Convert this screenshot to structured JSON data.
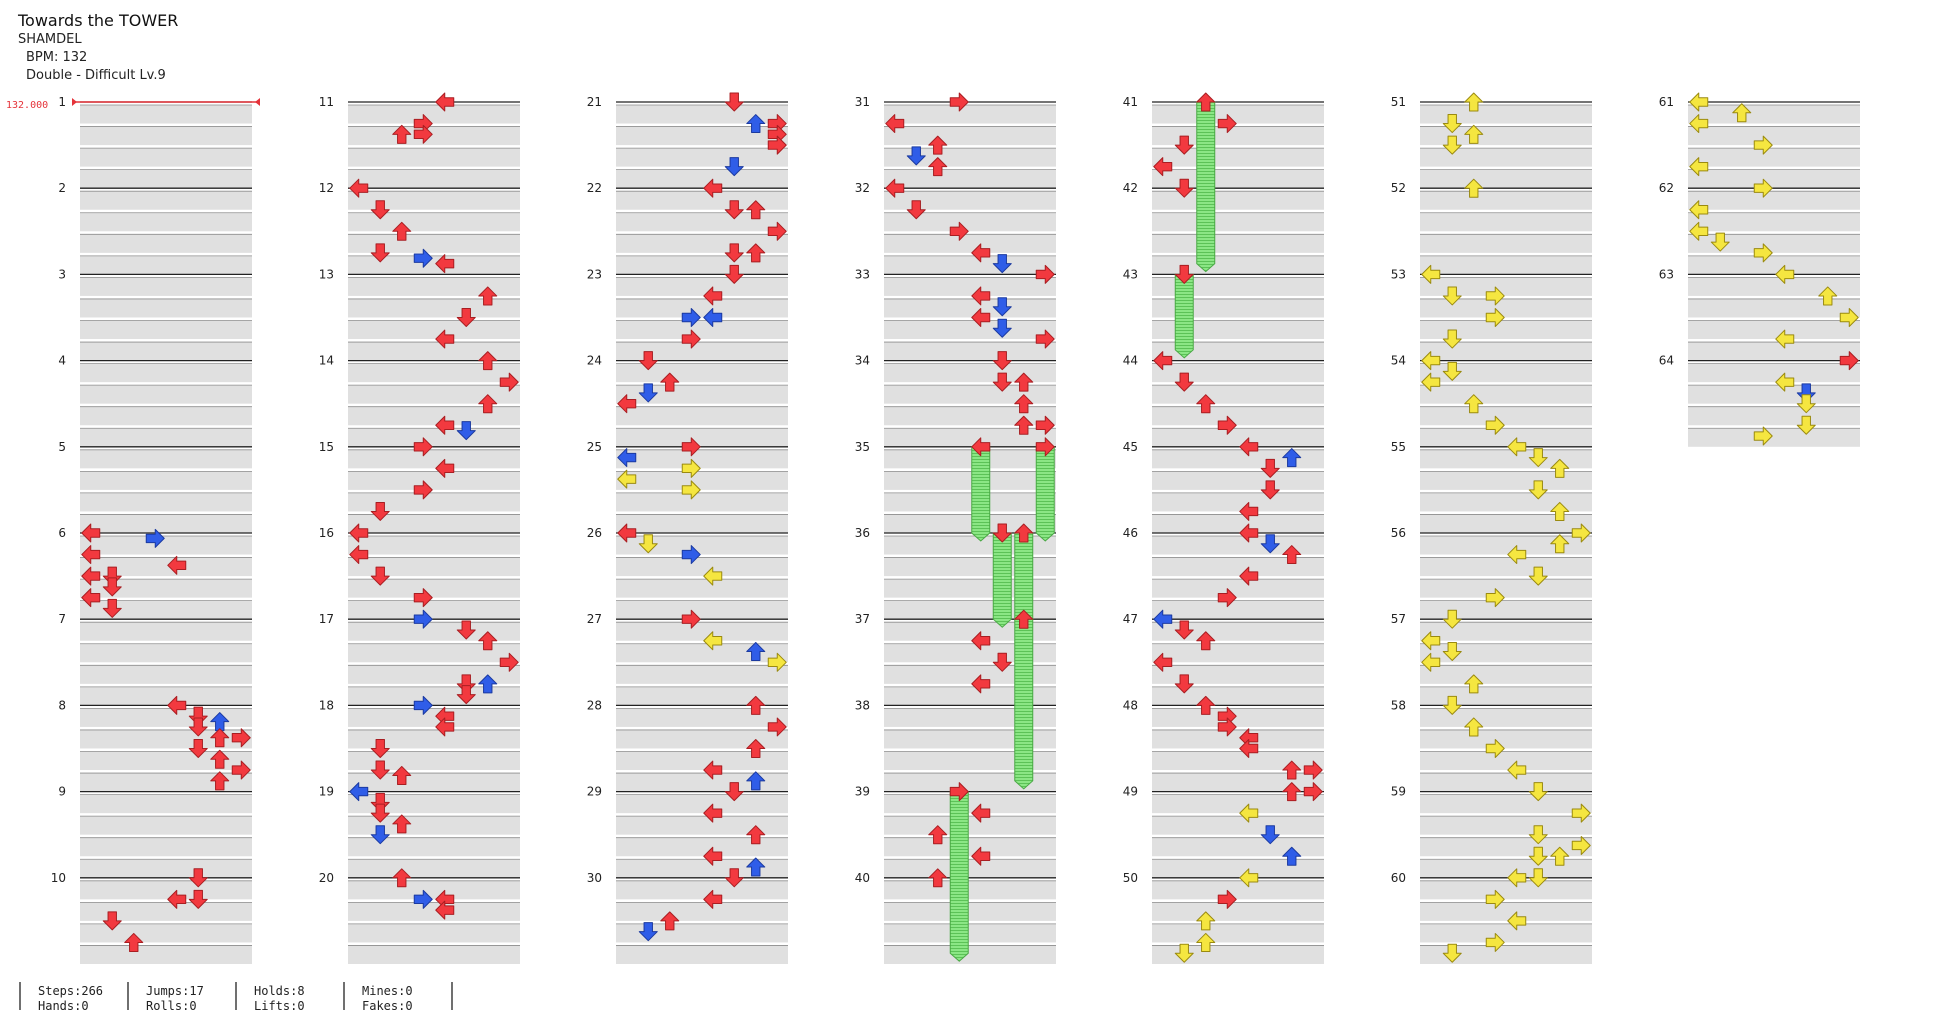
{
  "song": {
    "title": "Towards the TOWER",
    "artist": "SHAMDEL",
    "bpm_text": "BPM: 132",
    "difficulty_text": "Double - Difficult Lv.9"
  },
  "bpm_marker": {
    "text": "132.000",
    "measure": 1,
    "color": "#e5333a"
  },
  "colors": {
    "red": "#f2393f",
    "blue": "#2f5de8",
    "yellow": "#f5e640",
    "hold": "#7fe07a",
    "stripe": "#e0e0e0",
    "measure_line": "#222222"
  },
  "icons": [
    "arrow-left-icon",
    "arrow-down-icon",
    "arrow-up-icon",
    "arrow-right-icon",
    "hold-bar-icon"
  ],
  "measure_numbers": [
    "1",
    "2",
    "3",
    "4",
    "5",
    "6",
    "7",
    "8",
    "9",
    "10",
    "11",
    "12",
    "13",
    "14",
    "15",
    "16",
    "17",
    "18",
    "19",
    "20",
    "21",
    "22",
    "23",
    "24",
    "25",
    "26",
    "27",
    "28",
    "29",
    "30",
    "31",
    "32",
    "33",
    "34",
    "35",
    "36",
    "37",
    "38",
    "39",
    "40",
    "41",
    "42",
    "43",
    "44",
    "45",
    "46",
    "47",
    "48",
    "49",
    "50",
    "51",
    "52",
    "53",
    "54",
    "55",
    "56",
    "57",
    "58",
    "59",
    "60",
    "61",
    "62",
    "63",
    "64"
  ],
  "notes": [
    [
      6,
      0,
      0,
      "r"
    ],
    [
      6,
      0.25,
      3,
      "b"
    ],
    [
      6,
      1,
      0,
      "r"
    ],
    [
      6,
      1.5,
      4,
      "r"
    ],
    [
      6,
      2,
      0,
      "r"
    ],
    [
      6,
      2,
      1,
      "r"
    ],
    [
      6,
      2.5,
      1,
      "r"
    ],
    [
      6,
      3,
      0,
      "r"
    ],
    [
      6,
      3.5,
      1,
      "r"
    ],
    [
      8,
      0,
      4,
      "r"
    ],
    [
      8,
      0.5,
      5,
      "r"
    ],
    [
      8,
      0.75,
      6,
      "b"
    ],
    [
      8,
      1,
      5,
      "r"
    ],
    [
      8,
      1.5,
      6,
      "r"
    ],
    [
      8,
      1.5,
      7,
      "r"
    ],
    [
      8,
      2,
      5,
      "r"
    ],
    [
      8,
      2.5,
      6,
      "r"
    ],
    [
      8,
      3,
      7,
      "r"
    ],
    [
      8,
      3.5,
      6,
      "r"
    ],
    [
      10,
      0,
      5,
      "r"
    ],
    [
      10,
      1,
      4,
      "r"
    ],
    [
      10,
      1,
      5,
      "r"
    ],
    [
      10,
      2,
      1,
      "r"
    ],
    [
      10,
      3,
      2,
      "r"
    ],
    [
      11,
      0,
      4,
      "r"
    ],
    [
      11,
      1,
      3,
      "r"
    ],
    [
      11,
      1.5,
      2,
      "r"
    ],
    [
      11,
      1.5,
      3,
      "r"
    ],
    [
      12,
      0,
      0,
      "r"
    ],
    [
      12,
      1,
      1,
      "r"
    ],
    [
      12,
      2,
      2,
      "r"
    ],
    [
      12,
      3,
      1,
      "r"
    ],
    [
      12,
      3.25,
      3,
      "b"
    ],
    [
      12,
      3.5,
      4,
      "r"
    ],
    [
      13,
      1,
      6,
      "r"
    ],
    [
      13,
      2,
      5,
      "r"
    ],
    [
      13,
      3,
      4,
      "r"
    ],
    [
      14,
      0,
      6,
      "r"
    ],
    [
      14,
      1,
      7,
      "r"
    ],
    [
      14,
      2,
      6,
      "r"
    ],
    [
      14,
      3,
      4,
      "r"
    ],
    [
      14,
      3.25,
      5,
      "b"
    ],
    [
      15,
      0,
      3,
      "r"
    ],
    [
      15,
      1,
      4,
      "r"
    ],
    [
      15,
      2,
      3,
      "r"
    ],
    [
      15,
      3,
      1,
      "r"
    ],
    [
      16,
      0,
      0,
      "r"
    ],
    [
      16,
      1,
      0,
      "r"
    ],
    [
      16,
      2,
      1,
      "r"
    ],
    [
      16,
      3,
      3,
      "r"
    ],
    [
      17,
      0,
      3,
      "b"
    ],
    [
      17,
      0.5,
      5,
      "r"
    ],
    [
      17,
      1,
      6,
      "r"
    ],
    [
      17,
      2,
      7,
      "r"
    ],
    [
      17,
      3,
      5,
      "r"
    ],
    [
      17,
      3,
      6,
      "b"
    ],
    [
      17,
      3.5,
      5,
      "r"
    ],
    [
      18,
      0,
      3,
      "b"
    ],
    [
      18,
      0.5,
      4,
      "r"
    ],
    [
      18,
      1,
      4,
      "r"
    ],
    [
      18,
      2,
      1,
      "r"
    ],
    [
      18,
      3,
      1,
      "r"
    ],
    [
      18,
      3.25,
      2,
      "r"
    ],
    [
      19,
      0,
      0,
      "b"
    ],
    [
      19,
      0.5,
      1,
      "r"
    ],
    [
      19,
      1,
      1,
      "r"
    ],
    [
      19,
      1.5,
      2,
      "r"
    ],
    [
      19,
      2,
      1,
      "b"
    ],
    [
      20,
      0,
      2,
      "r"
    ],
    [
      20,
      1,
      3,
      "b"
    ],
    [
      20,
      1,
      4,
      "r"
    ],
    [
      20,
      1.5,
      4,
      "r"
    ],
    [
      21,
      0,
      5,
      "r"
    ],
    [
      21,
      1,
      6,
      "b"
    ],
    [
      21,
      1,
      7,
      "r"
    ],
    [
      21,
      1.5,
      7,
      "r"
    ],
    [
      21,
      2,
      7,
      "r"
    ],
    [
      21,
      3,
      5,
      "b"
    ],
    [
      22,
      0,
      4,
      "r"
    ],
    [
      22,
      1,
      5,
      "r"
    ],
    [
      22,
      1,
      6,
      "r"
    ],
    [
      22,
      2,
      7,
      "r"
    ],
    [
      22,
      3,
      5,
      "r"
    ],
    [
      22,
      3,
      6,
      "r"
    ],
    [
      23,
      0,
      5,
      "r"
    ],
    [
      23,
      1,
      4,
      "r"
    ],
    [
      23,
      2,
      3,
      "b"
    ],
    [
      23,
      2,
      4,
      "b"
    ],
    [
      23,
      3,
      3,
      "r"
    ],
    [
      24,
      0,
      1,
      "r"
    ],
    [
      24,
      1,
      2,
      "r"
    ],
    [
      24,
      1.5,
      1,
      "b"
    ],
    [
      24,
      2,
      0,
      "r"
    ],
    [
      25,
      0,
      3,
      "r"
    ],
    [
      25,
      0.5,
      0,
      "b"
    ],
    [
      25,
      1,
      3,
      "y"
    ],
    [
      25,
      1.5,
      0,
      "y"
    ],
    [
      25,
      2,
      3,
      "y"
    ],
    [
      26,
      0,
      0,
      "r"
    ],
    [
      26,
      0.5,
      1,
      "y"
    ],
    [
      26,
      1,
      3,
      "b"
    ],
    [
      26,
      2,
      4,
      "y"
    ],
    [
      27,
      0,
      3,
      "r"
    ],
    [
      27,
      1,
      4,
      "y"
    ],
    [
      27,
      1.5,
      6,
      "b"
    ],
    [
      27,
      2,
      7,
      "y"
    ],
    [
      28,
      0,
      6,
      "r"
    ],
    [
      28,
      1,
      7,
      "r"
    ],
    [
      28,
      2,
      6,
      "r"
    ],
    [
      28,
      3,
      4,
      "r"
    ],
    [
      28,
      3.5,
      6,
      "b"
    ],
    [
      29,
      0,
      5,
      "r"
    ],
    [
      29,
      1,
      4,
      "r"
    ],
    [
      29,
      2,
      6,
      "r"
    ],
    [
      29,
      3,
      4,
      "r"
    ],
    [
      29,
      3.5,
      6,
      "b"
    ],
    [
      30,
      0,
      5,
      "r"
    ],
    [
      30,
      1,
      4,
      "r"
    ],
    [
      30,
      2,
      2,
      "r"
    ],
    [
      30,
      2.5,
      1,
      "b"
    ],
    [
      31,
      0,
      3,
      "r"
    ],
    [
      31,
      1,
      0,
      "r"
    ],
    [
      31,
      2,
      2,
      "r"
    ],
    [
      31,
      2.5,
      1,
      "b"
    ],
    [
      31,
      3,
      2,
      "r"
    ],
    [
      32,
      0,
      0,
      "r"
    ],
    [
      32,
      1,
      1,
      "r"
    ],
    [
      32,
      2,
      3,
      "r"
    ],
    [
      32,
      3,
      4,
      "r"
    ],
    [
      32,
      3.5,
      5,
      "b"
    ],
    [
      33,
      0,
      7,
      "r"
    ],
    [
      33,
      1,
      4,
      "r"
    ],
    [
      33,
      1.5,
      5,
      "b"
    ],
    [
      33,
      2,
      4,
      "r"
    ],
    [
      33,
      2.5,
      5,
      "b"
    ],
    [
      33,
      3,
      7,
      "r"
    ],
    [
      34,
      0,
      5,
      "r"
    ],
    [
      34,
      1,
      5,
      "r"
    ],
    [
      34,
      1,
      6,
      "r"
    ],
    [
      34,
      2,
      6,
      "r"
    ],
    [
      34,
      3,
      6,
      "r"
    ],
    [
      34,
      3,
      7,
      "r"
    ],
    [
      35,
      0,
      4,
      "r"
    ],
    [
      35,
      0,
      7,
      "r"
    ],
    [
      36,
      0,
      5,
      "r"
    ],
    [
      36,
      0,
      6,
      "r"
    ],
    [
      37,
      0,
      6,
      "r"
    ],
    [
      37,
      1,
      4,
      "r"
    ],
    [
      37,
      2,
      5,
      "r"
    ],
    [
      37,
      3,
      4,
      "r"
    ],
    [
      39,
      0,
      3,
      "r"
    ],
    [
      39,
      1,
      4,
      "r"
    ],
    [
      39,
      2,
      2,
      "r"
    ],
    [
      39,
      3,
      4,
      "r"
    ],
    [
      40,
      0,
      2,
      "r"
    ],
    [
      41,
      0,
      2,
      "r"
    ],
    [
      41,
      1,
      3,
      "r"
    ],
    [
      41,
      2,
      1,
      "r"
    ],
    [
      41,
      3,
      0,
      "r"
    ],
    [
      42,
      0,
      1,
      "r"
    ],
    [
      43,
      0,
      1,
      "r"
    ],
    [
      44,
      0,
      0,
      "r"
    ],
    [
      44,
      1,
      1,
      "r"
    ],
    [
      44,
      2,
      2,
      "r"
    ],
    [
      44,
      3,
      3,
      "r"
    ],
    [
      45,
      0,
      4,
      "r"
    ],
    [
      45,
      0.5,
      6,
      "b"
    ],
    [
      45,
      1,
      5,
      "r"
    ],
    [
      45,
      2,
      5,
      "r"
    ],
    [
      45,
      3,
      4,
      "r"
    ],
    [
      46,
      0,
      4,
      "r"
    ],
    [
      46,
      0.5,
      5,
      "b"
    ],
    [
      46,
      1,
      6,
      "r"
    ],
    [
      46,
      2,
      4,
      "r"
    ],
    [
      46,
      3,
      3,
      "r"
    ],
    [
      47,
      0,
      0,
      "b"
    ],
    [
      47,
      0.5,
      1,
      "r"
    ],
    [
      47,
      1,
      2,
      "r"
    ],
    [
      47,
      2,
      0,
      "r"
    ],
    [
      47,
      3,
      1,
      "r"
    ],
    [
      48,
      0,
      2,
      "r"
    ],
    [
      48,
      0.5,
      3,
      "r"
    ],
    [
      48,
      1,
      3,
      "r"
    ],
    [
      48,
      1.5,
      4,
      "r"
    ],
    [
      48,
      2,
      4,
      "r"
    ],
    [
      48,
      3,
      6,
      "r"
    ],
    [
      48,
      3,
      7,
      "r"
    ],
    [
      49,
      0,
      6,
      "r"
    ],
    [
      49,
      0,
      7,
      "r"
    ],
    [
      49,
      1,
      4,
      "y"
    ],
    [
      49,
      2,
      5,
      "b"
    ],
    [
      49,
      3,
      6,
      "b"
    ],
    [
      50,
      0,
      4,
      "y"
    ],
    [
      50,
      1,
      3,
      "r"
    ],
    [
      50,
      2,
      2,
      "y"
    ],
    [
      50,
      3,
      2,
      "y"
    ],
    [
      50,
      3.5,
      1,
      "y"
    ],
    [
      51,
      0,
      2,
      "y"
    ],
    [
      51,
      1,
      1,
      "y"
    ],
    [
      51,
      1.5,
      2,
      "y"
    ],
    [
      51,
      2,
      1,
      "y"
    ],
    [
      52,
      0,
      2,
      "y"
    ],
    [
      53,
      0,
      0,
      "y"
    ],
    [
      53,
      1,
      1,
      "y"
    ],
    [
      53,
      1,
      3,
      "y"
    ],
    [
      53,
      2,
      3,
      "y"
    ],
    [
      53,
      3,
      1,
      "y"
    ],
    [
      54,
      0,
      0,
      "y"
    ],
    [
      54,
      0.5,
      1,
      "y"
    ],
    [
      54,
      1,
      0,
      "y"
    ],
    [
      54,
      2,
      2,
      "y"
    ],
    [
      54,
      3,
      3,
      "y"
    ],
    [
      55,
      0,
      4,
      "y"
    ],
    [
      55,
      0.5,
      5,
      "y"
    ],
    [
      55,
      1,
      6,
      "y"
    ],
    [
      55,
      2,
      5,
      "y"
    ],
    [
      55,
      3,
      6,
      "y"
    ],
    [
      56,
      0,
      7,
      "y"
    ],
    [
      56,
      0.5,
      6,
      "y"
    ],
    [
      56,
      1,
      4,
      "y"
    ],
    [
      56,
      2,
      5,
      "y"
    ],
    [
      56,
      3,
      3,
      "y"
    ],
    [
      57,
      0,
      1,
      "y"
    ],
    [
      57,
      1,
      0,
      "y"
    ],
    [
      57,
      1.5,
      1,
      "y"
    ],
    [
      57,
      2,
      0,
      "y"
    ],
    [
      57,
      3,
      2,
      "y"
    ],
    [
      58,
      0,
      1,
      "y"
    ],
    [
      58,
      1,
      2,
      "y"
    ],
    [
      58,
      2,
      3,
      "y"
    ],
    [
      58,
      3,
      4,
      "y"
    ],
    [
      59,
      0,
      5,
      "y"
    ],
    [
      59,
      1,
      7,
      "y"
    ],
    [
      59,
      2,
      5,
      "y"
    ],
    [
      59,
      2.5,
      7,
      "y"
    ],
    [
      59,
      3,
      5,
      "y"
    ],
    [
      59,
      3,
      6,
      "y"
    ],
    [
      60,
      0,
      4,
      "y"
    ],
    [
      60,
      0,
      5,
      "y"
    ],
    [
      60,
      1,
      3,
      "y"
    ],
    [
      60,
      2,
      4,
      "y"
    ],
    [
      60,
      3,
      3,
      "y"
    ],
    [
      60,
      3.5,
      1,
      "y"
    ],
    [
      61,
      0,
      0,
      "y"
    ],
    [
      61,
      0.5,
      2,
      "y"
    ],
    [
      61,
      1,
      0,
      "y"
    ],
    [
      61,
      2,
      3,
      "y"
    ],
    [
      61,
      3,
      0,
      "y"
    ],
    [
      62,
      0,
      3,
      "y"
    ],
    [
      62,
      1,
      0,
      "y"
    ],
    [
      62,
      2,
      0,
      "y"
    ],
    [
      62,
      2.5,
      1,
      "y"
    ],
    [
      62,
      3,
      3,
      "y"
    ],
    [
      63,
      0,
      4,
      "y"
    ],
    [
      63,
      1,
      6,
      "y"
    ],
    [
      63,
      2,
      7,
      "y"
    ],
    [
      63,
      3,
      4,
      "y"
    ],
    [
      64,
      0,
      7,
      "r"
    ],
    [
      64,
      1,
      4,
      "y"
    ],
    [
      64,
      1.5,
      5,
      "b"
    ],
    [
      64,
      2,
      5,
      "y"
    ],
    [
      64,
      3,
      5,
      "y"
    ],
    [
      64,
      3.5,
      3,
      "y"
    ]
  ],
  "holds": [
    [
      35,
      0,
      36,
      0,
      4
    ],
    [
      35,
      0,
      36,
      0,
      7
    ],
    [
      36,
      0,
      37,
      0,
      5
    ],
    [
      36,
      0,
      37,
      0,
      6
    ],
    [
      37,
      0,
      38,
      3.5,
      6
    ],
    [
      39,
      0,
      40,
      3.5,
      3
    ],
    [
      41,
      0,
      42,
      3.5,
      2
    ],
    [
      43,
      0,
      43,
      3.5,
      1
    ]
  ],
  "stats": [
    [
      "Steps:266",
      "Hands:0"
    ],
    [
      "Jumps:17",
      "Rolls:0"
    ],
    [
      "Holds:8",
      "Lifts:0"
    ],
    [
      "Mines:0",
      "Fakes:0"
    ]
  ]
}
